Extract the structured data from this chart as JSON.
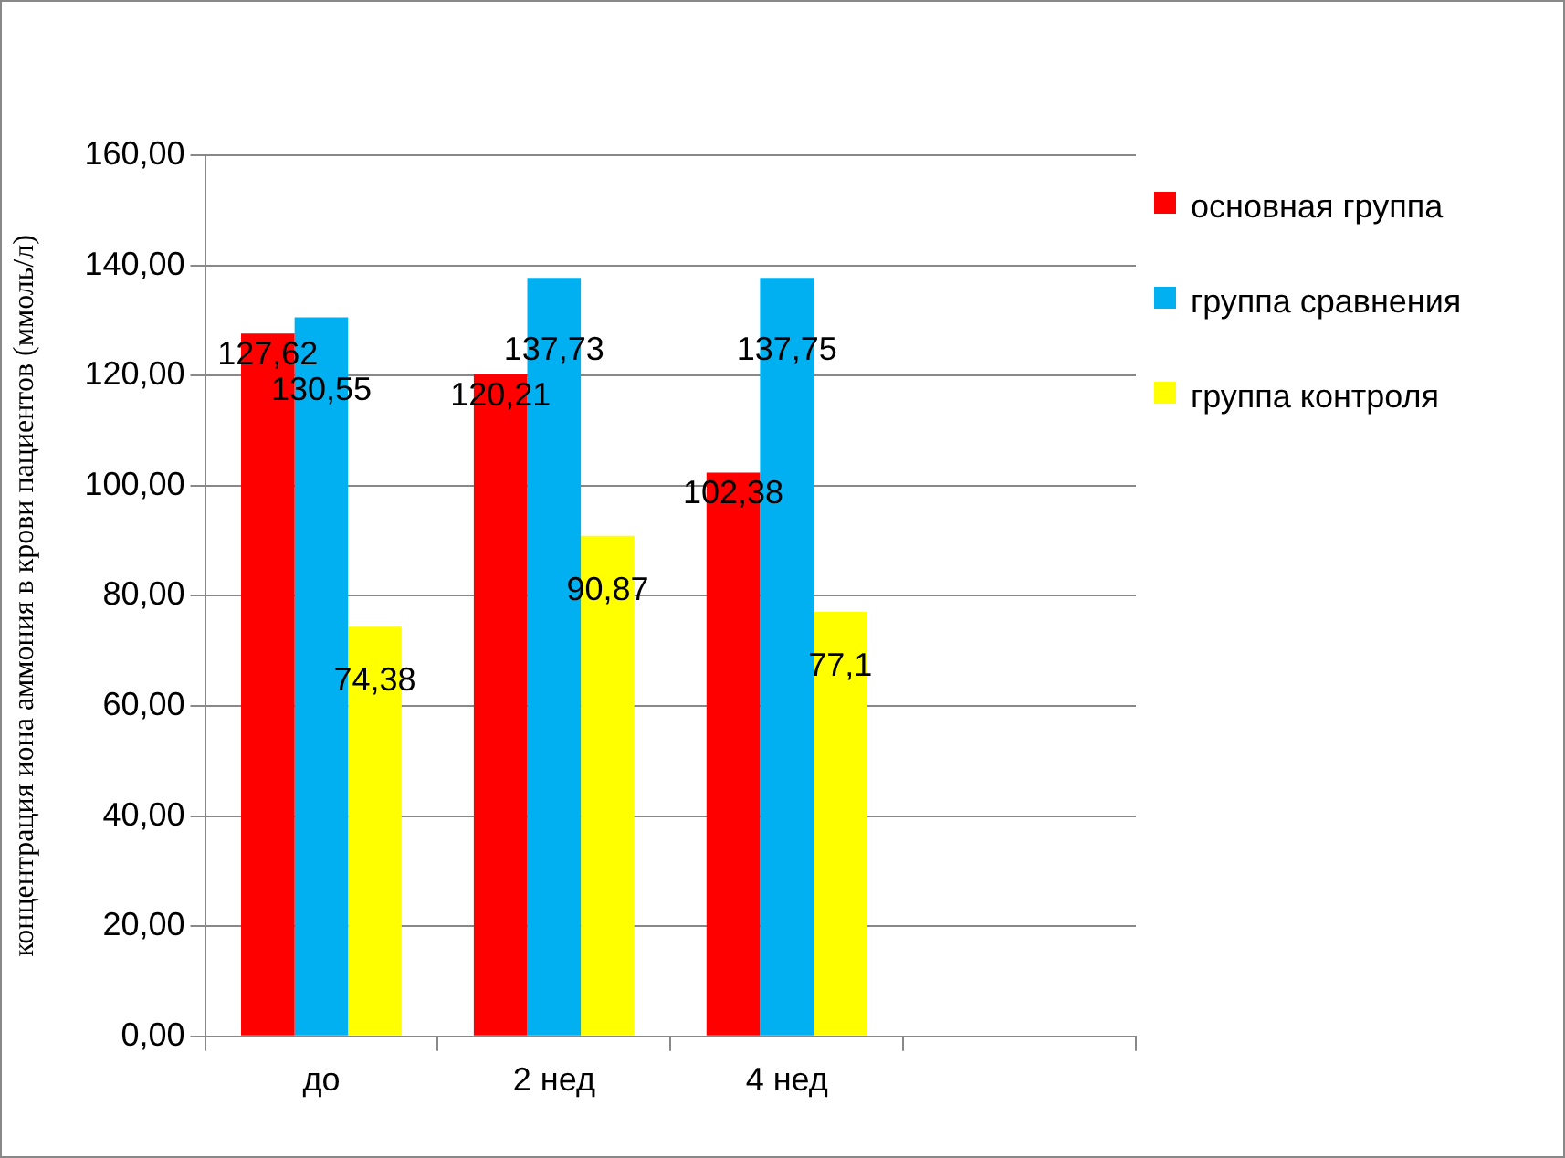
{
  "chart_data": {
    "type": "bar",
    "ylabel": "концентрация иона аммония в крови пациентов (ммоль/л)",
    "categories": [
      "до",
      "2 нед",
      "4 нед",
      null
    ],
    "series": [
      {
        "name": "основная группа",
        "color": "#ff0000",
        "values": [
          127.62,
          120.21,
          102.38,
          null
        ],
        "value_labels": [
          "127,62",
          "120,21",
          "102,38",
          null
        ]
      },
      {
        "name": "группа сравнения",
        "color": "#00b0f0",
        "values": [
          130.55,
          137.73,
          137.75,
          null
        ],
        "value_labels": [
          "130,55",
          "137,73",
          "137,75",
          null
        ]
      },
      {
        "name": "группа контроля",
        "color": "#ffff00",
        "values": [
          74.38,
          90.87,
          77.1,
          null
        ],
        "value_labels": [
          "74,38",
          "90,87",
          "77,1",
          null
        ]
      }
    ],
    "ylim": [
      0,
      160
    ],
    "yticks": [
      {
        "value": 0,
        "label": "0,00"
      },
      {
        "value": 20,
        "label": "20,00"
      },
      {
        "value": 40,
        "label": "40,00"
      },
      {
        "value": 60,
        "label": "60,00"
      },
      {
        "value": 80,
        "label": "80,00"
      },
      {
        "value": 100,
        "label": "100,00"
      },
      {
        "value": 120,
        "label": "120,00"
      },
      {
        "value": 140,
        "label": "140,00"
      },
      {
        "value": 160,
        "label": "160,00"
      }
    ],
    "grid": "y",
    "legend": "right"
  }
}
